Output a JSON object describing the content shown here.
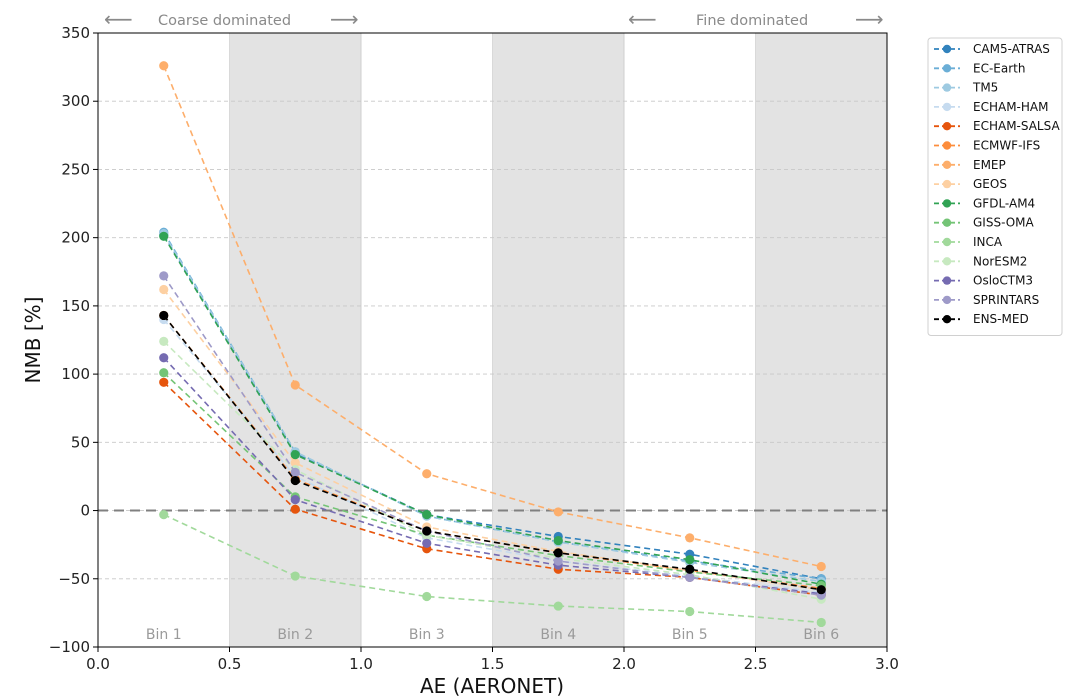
{
  "chart_data": {
    "type": "line",
    "xlabel": "AE (AERONET)",
    "ylabel": "NMB [%]",
    "xlim": [
      0.0,
      3.0
    ],
    "ylim": [
      -100,
      350
    ],
    "xticks": [
      "0.0",
      "0.5",
      "1.0",
      "1.5",
      "2.0",
      "2.5",
      "3.0"
    ],
    "yticks": [
      "−100",
      "−50",
      "0",
      "50",
      "100",
      "150",
      "200",
      "250",
      "300",
      "350"
    ],
    "y_gridlines": true,
    "zero_line": true,
    "legend_position": "outside-right-top",
    "x": [
      0.25,
      0.75,
      1.25,
      1.75,
      2.25,
      2.75
    ],
    "bins": [
      {
        "label": "Bin 1",
        "range": [
          0.0,
          0.5
        ],
        "shaded": false
      },
      {
        "label": "Bin 2",
        "range": [
          0.5,
          1.0
        ],
        "shaded": true
      },
      {
        "label": "Bin 3",
        "range": [
          1.0,
          1.5
        ],
        "shaded": false
      },
      {
        "label": "Bin 4",
        "range": [
          1.5,
          2.0
        ],
        "shaded": true
      },
      {
        "label": "Bin 5",
        "range": [
          2.0,
          2.5
        ],
        "shaded": false
      },
      {
        "label": "Bin 6",
        "range": [
          2.5,
          3.0
        ],
        "shaded": true
      }
    ],
    "annotations": {
      "left": {
        "text": "Coarse dominated",
        "left_arrow": "⟵",
        "right_arrow": "⟶"
      },
      "right": {
        "text": "Fine dominated",
        "left_arrow": "⟵",
        "right_arrow": "⟶"
      }
    },
    "series": [
      {
        "name": "CAM5-ATRAS",
        "color": "#3182bd",
        "values": [
          202,
          42,
          -3,
          -19,
          -32,
          -50
        ]
      },
      {
        "name": "EC-Earth",
        "color": "#6baed6",
        "values": [
          204,
          43,
          -4,
          -23,
          -37,
          -50
        ]
      },
      {
        "name": "TM5",
        "color": "#9ecae1",
        "values": [
          203,
          43,
          -4,
          -23,
          -38,
          -52
        ]
      },
      {
        "name": "ECHAM-HAM",
        "color": "#c6dbef",
        "values": [
          140,
          25,
          -20,
          -37,
          -48,
          -60
        ]
      },
      {
        "name": "ECHAM-SALSA",
        "color": "#e6550d",
        "values": [
          94,
          1,
          -28,
          -43,
          -49,
          -62
        ]
      },
      {
        "name": "ECMWF-IFS",
        "color": "#fd8d3c",
        "values": [
          143,
          23,
          -15,
          -31,
          -44,
          -57
        ]
      },
      {
        "name": "EMEP",
        "color": "#fdae6b",
        "values": [
          326,
          92,
          27,
          -1,
          -20,
          -41
        ]
      },
      {
        "name": "GEOS",
        "color": "#fdd0a2",
        "values": [
          162,
          35,
          -12,
          -30,
          -44,
          -58
        ]
      },
      {
        "name": "GFDL-AM4",
        "color": "#31a354",
        "values": [
          201,
          41,
          -3,
          -22,
          -36,
          -54
        ]
      },
      {
        "name": "GISS-OMA",
        "color": "#74c476",
        "values": [
          101,
          10,
          -18,
          -33,
          -45,
          -55
        ]
      },
      {
        "name": "INCA",
        "color": "#a1d99b",
        "values": [
          -3,
          -48,
          -63,
          -70,
          -74,
          -82
        ]
      },
      {
        "name": "NorESM2",
        "color": "#c7e9c0",
        "values": [
          124,
          30,
          -18,
          -35,
          -47,
          -65
        ]
      },
      {
        "name": "OsloCTM3",
        "color": "#756bb1",
        "values": [
          112,
          8,
          -24,
          -40,
          -49,
          -61
        ]
      },
      {
        "name": "SPRINTARS",
        "color": "#9e9ac8",
        "values": [
          172,
          28,
          -15,
          -37,
          -49,
          -62
        ]
      },
      {
        "name": "ENS-MED",
        "color": "#000000",
        "values": [
          143,
          22,
          -15,
          -31,
          -43,
          -58
        ]
      }
    ]
  }
}
